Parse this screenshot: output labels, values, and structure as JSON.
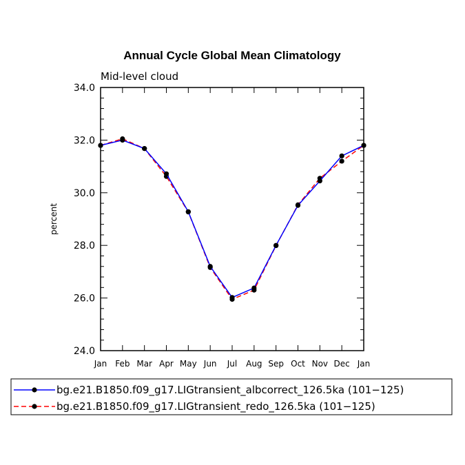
{
  "chart_data": {
    "type": "line",
    "title": "Annual Cycle Global Mean Climatology",
    "subtitle": "Mid-level cloud",
    "xlabel": "",
    "ylabel": "percent",
    "ylim": [
      24.0,
      34.0
    ],
    "y_ticks": [
      "24.0",
      "26.0",
      "28.0",
      "30.0",
      "32.0",
      "34.0"
    ],
    "categories": [
      "Jan",
      "Feb",
      "Mar",
      "Apr",
      "May",
      "Jun",
      "Jul",
      "Aug",
      "Sep",
      "Oct",
      "Nov",
      "Dec",
      "Jan"
    ],
    "series": [
      {
        "name": "bg.e21.B1850.f09_g17.LIGtransient_albcorrect_126.5ka (101−125)",
        "color": "#0000ff",
        "dash": "solid",
        "values": [
          31.8,
          32.0,
          31.68,
          30.72,
          29.28,
          27.2,
          26.02,
          26.38,
          28.0,
          29.52,
          30.45,
          31.4,
          31.8
        ]
      },
      {
        "name": "bg.e21.B1850.f09_g17.LIGtransient_redo_126.5ka (101−125)",
        "color": "#ff0000",
        "dash": "dashed",
        "values": [
          31.8,
          32.05,
          31.68,
          30.62,
          29.27,
          27.16,
          25.95,
          26.3,
          27.99,
          29.54,
          30.55,
          31.2,
          31.8
        ]
      }
    ]
  }
}
